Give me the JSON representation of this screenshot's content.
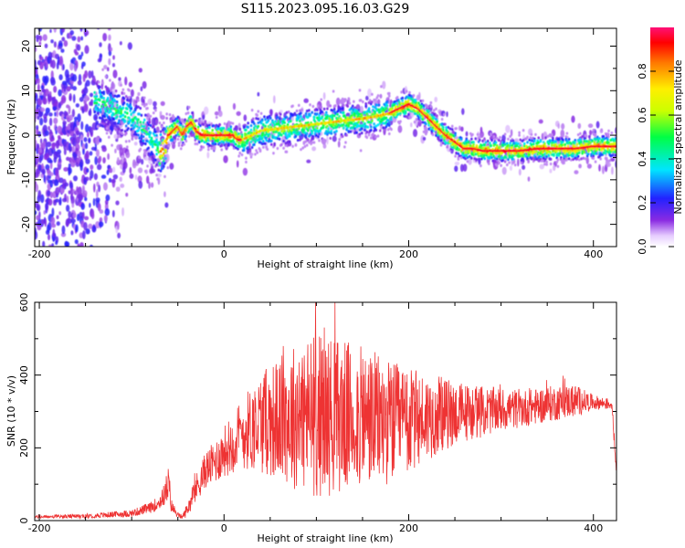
{
  "figure": {
    "title": "S115.2023.095.16.03.G29"
  },
  "chart_data": [
    {
      "type": "heatmap",
      "xlabel": "Height of straight line (km)",
      "ylabel": "Frequency (Hz)",
      "xlim": [
        -205,
        425
      ],
      "ylim": [
        -25,
        24
      ],
      "xticks": [
        -200,
        0,
        200,
        400
      ],
      "yticks": [
        -20,
        -10,
        0,
        10,
        20
      ],
      "colorbar": {
        "label": "Normalized spectral amplitude",
        "range": [
          0,
          1
        ],
        "ticks": [
          0.0,
          0.2,
          0.4,
          0.6,
          0.8
        ]
      },
      "ridge": {
        "x": [
          -200,
          -180,
          -160,
          -140,
          -120,
          -110,
          -100,
          -95,
          -90,
          -85,
          -80,
          -75,
          -70,
          -65,
          -60,
          -55,
          -50,
          -45,
          -40,
          -35,
          -30,
          -25,
          -20,
          -10,
          0,
          10,
          15,
          20,
          30,
          40,
          60,
          80,
          100,
          120,
          140,
          160,
          180,
          190,
          195,
          200,
          205,
          210,
          220,
          230,
          240,
          250,
          260,
          270,
          280,
          300,
          320,
          340,
          360,
          380,
          400,
          425
        ],
        "y": [
          14,
          12,
          10,
          8,
          6,
          5,
          4,
          3,
          2,
          1,
          -1,
          -2,
          -4,
          -3,
          0,
          1,
          2,
          0,
          2,
          3,
          1,
          0,
          0,
          0,
          0,
          0,
          -1,
          -1,
          0,
          1,
          1.5,
          2,
          2.5,
          3,
          3.5,
          4,
          5,
          6,
          6.5,
          7,
          6.5,
          6,
          4,
          2,
          0,
          -1.5,
          -3,
          -3,
          -3.5,
          -3.5,
          -3.5,
          -3,
          -3,
          -3,
          -2.5,
          -2.5
        ]
      }
    },
    {
      "type": "line",
      "xlabel": "Height of straight line (km)",
      "ylabel": "SNR (10 * v/v)",
      "xlim": [
        -205,
        425
      ],
      "ylim": [
        0,
        600
      ],
      "xticks": [
        -200,
        0,
        200,
        400
      ],
      "yticks": [
        0,
        200,
        400,
        600
      ],
      "color": "#ee3333",
      "envelope": {
        "x": [
          -205,
          -150,
          -100,
          -80,
          -70,
          -65,
          -60,
          -57,
          -50,
          -45,
          -40,
          -35,
          -30,
          -20,
          -10,
          0,
          20,
          40,
          60,
          80,
          100,
          120,
          140,
          160,
          180,
          200,
          220,
          250,
          280,
          300,
          330,
          350,
          380,
          400,
          420,
          425
        ],
        "mean": [
          10,
          12,
          20,
          35,
          50,
          70,
          100,
          40,
          15,
          10,
          30,
          60,
          90,
          140,
          160,
          190,
          240,
          270,
          280,
          290,
          290,
          290,
          285,
          280,
          270,
          270,
          285,
          295,
          300,
          305,
          310,
          320,
          330,
          325,
          320,
          130
        ],
        "spread": [
          4,
          6,
          10,
          15,
          20,
          30,
          55,
          20,
          8,
          6,
          20,
          30,
          40,
          50,
          60,
          70,
          100,
          140,
          170,
          210,
          230,
          220,
          200,
          190,
          170,
          150,
          120,
          90,
          70,
          60,
          50,
          50,
          45,
          20,
          15,
          20
        ]
      }
    }
  ]
}
